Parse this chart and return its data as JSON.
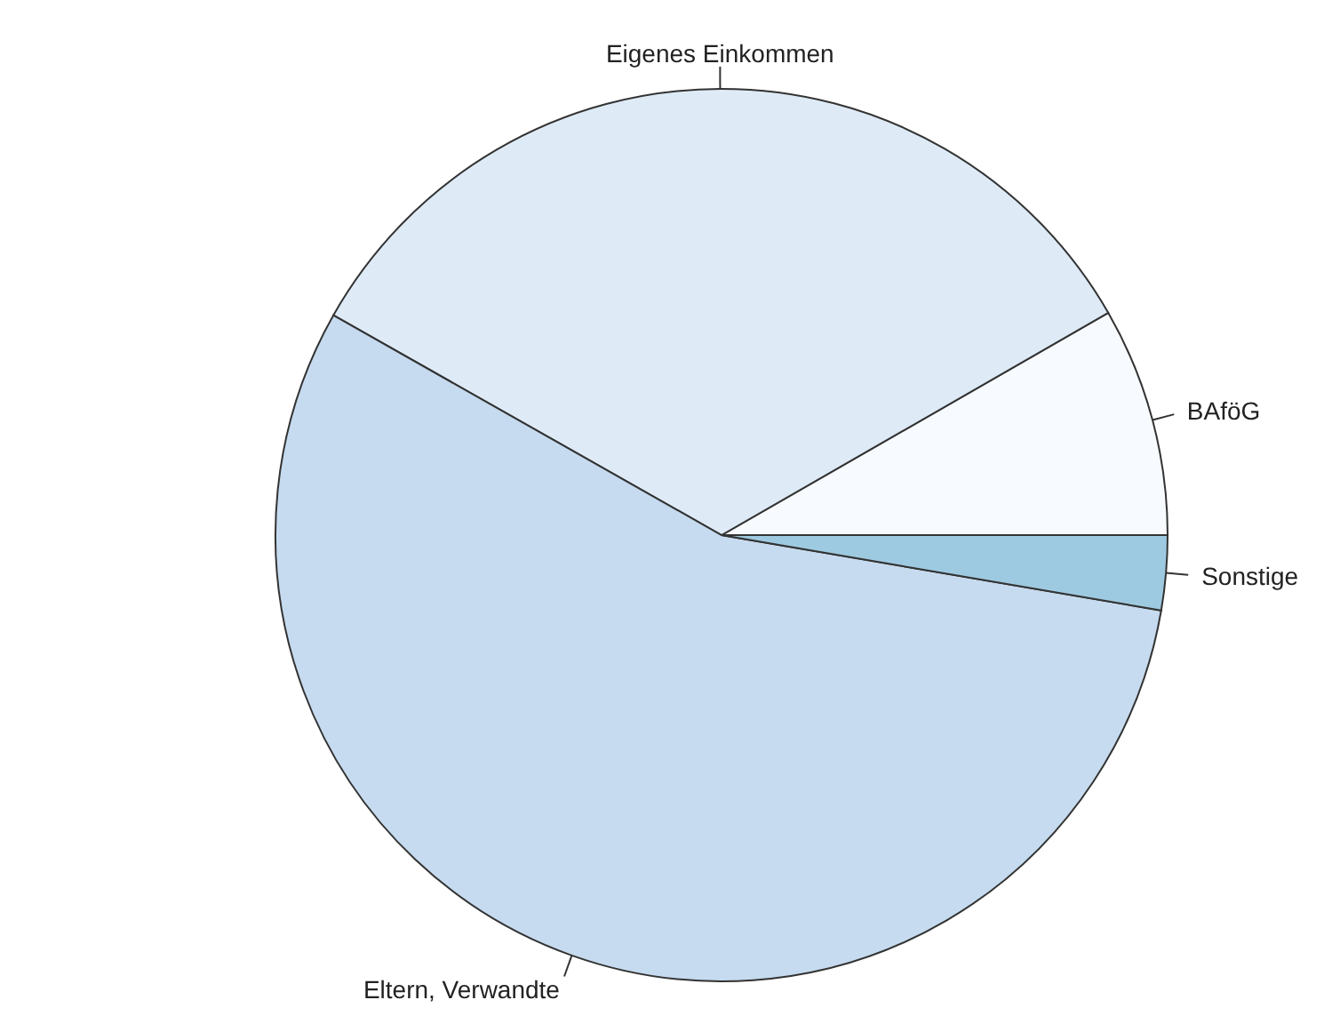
{
  "chart_data": {
    "type": "pie",
    "categories": [
      "BAföG",
      "Eigenes Einkommen",
      "Eltern, Verwandte",
      "Sonstige"
    ],
    "values": [
      8.3,
      33.5,
      55.5,
      2.7
    ],
    "colors": [
      "#f7fbff",
      "#deebf7",
      "#c6dbef",
      "#9ecae1"
    ],
    "legend": false
  }
}
